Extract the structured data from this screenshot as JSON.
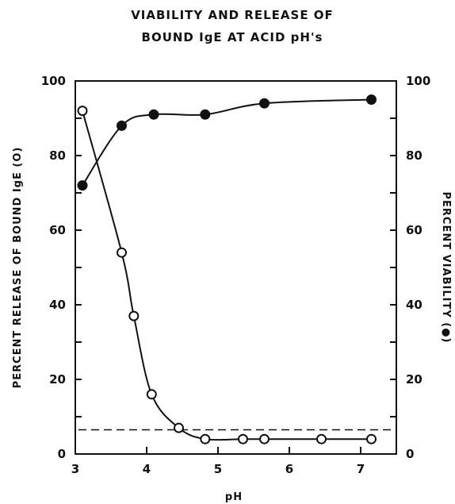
{
  "chart_data": {
    "type": "scatter",
    "title": [
      "VIABILITY AND RELEASE OF",
      "BOUND IgE AT ACID pH's"
    ],
    "xlabel": "pH",
    "ylabel_left": "PERCENT RELEASE OF BOUND IgE (O)",
    "ylabel_right": "PERCENT VIABILITY (●)",
    "xlim": [
      3,
      7.5
    ],
    "ylim": [
      0,
      100
    ],
    "x_ticks": [
      "3",
      "4",
      "5",
      "6",
      "7"
    ],
    "y_ticks": [
      "0",
      "20",
      "40",
      "60",
      "80",
      "100"
    ],
    "grid": false,
    "series": [
      {
        "name": "PERCENT RELEASE OF BOUND IgE (O)",
        "marker": "open-circle",
        "axis": "left",
        "x": [
          3.1,
          3.65,
          3.82,
          4.07,
          4.45,
          4.82,
          5.35,
          5.65,
          6.45,
          7.15
        ],
        "y": [
          92,
          54,
          37,
          16,
          7,
          4,
          4,
          4,
          4,
          4
        ]
      },
      {
        "name": "PERCENT VIABILITY (●)",
        "marker": "filled-circle",
        "axis": "right",
        "x": [
          3.1,
          3.65,
          4.1,
          4.82,
          5.65,
          7.15
        ],
        "y": [
          72,
          88,
          91,
          91,
          94,
          95
        ]
      }
    ],
    "reference_line": {
      "style": "dashed",
      "y": 6.5
    }
  }
}
